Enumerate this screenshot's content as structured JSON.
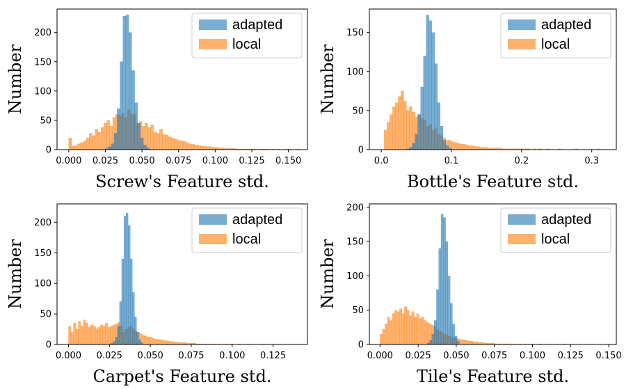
{
  "colors": {
    "adapted": "#1f77b4",
    "local": "#ff7f0e"
  },
  "chart_data": [
    {
      "type": "histogram",
      "xlabel": "Screw's Feature std.",
      "ylabel": "Number",
      "xlim": [
        -0.008,
        0.163
      ],
      "ylim": [
        0,
        240
      ],
      "xticks": [
        "0.000",
        "0.025",
        "0.050",
        "0.075",
        "0.100",
        "0.125",
        "0.150"
      ],
      "yticks": [
        "0",
        "50",
        "100",
        "150",
        "200"
      ],
      "legend": "top-right",
      "series": [
        {
          "name": "adapted",
          "color": "#1f77b4",
          "alpha": 0.6,
          "x0": 0.025,
          "bin_width": 0.002,
          "counts": [
            2,
            5,
            10,
            28,
            70,
            150,
            228,
            230,
            200,
            135,
            80,
            45,
            20,
            8,
            3
          ]
        },
        {
          "name": "local",
          "color": "#ff7f0e",
          "alpha": 0.6,
          "x0": 0.0,
          "bin_width": 0.002,
          "counts": [
            20,
            6,
            7,
            10,
            12,
            15,
            20,
            28,
            24,
            35,
            30,
            38,
            45,
            50,
            40,
            55,
            60,
            58,
            62,
            55,
            68,
            60,
            60,
            45,
            48,
            40,
            45,
            38,
            42,
            30,
            28,
            35,
            26,
            25,
            22,
            20,
            18,
            16,
            15,
            14,
            12,
            10,
            9,
            8,
            7,
            6,
            6,
            5,
            5,
            4,
            4,
            3,
            3,
            2,
            2,
            2,
            2,
            1,
            1,
            1,
            1,
            1,
            1,
            1,
            0,
            1,
            1,
            1,
            0,
            1,
            0,
            1,
            0,
            0,
            1,
            1,
            0,
            0,
            1,
            0
          ]
        }
      ]
    },
    {
      "type": "histogram",
      "xlabel": "Bottle's Feature std.",
      "ylabel": "Number",
      "xlim": [
        -0.017,
        0.335
      ],
      "ylim": [
        0,
        180
      ],
      "xticks": [
        "0.0",
        "0.1",
        "0.2",
        "0.3"
      ],
      "yticks": [
        "0",
        "50",
        "100",
        "150"
      ],
      "legend": "top-right",
      "series": [
        {
          "name": "adapted",
          "color": "#1f77b4",
          "alpha": 0.6,
          "x0": 0.036,
          "bin_width": 0.004,
          "counts": [
            1,
            3,
            8,
            20,
            45,
            80,
            120,
            172,
            165,
            150,
            110,
            60,
            30,
            12,
            5,
            2
          ]
        },
        {
          "name": "local",
          "color": "#ff7f0e",
          "alpha": 0.6,
          "x0": 0.004,
          "bin_width": 0.004,
          "counts": [
            25,
            35,
            45,
            55,
            60,
            68,
            75,
            62,
            50,
            55,
            48,
            42,
            45,
            40,
            38,
            30,
            32,
            25,
            28,
            20,
            18,
            15,
            12,
            12,
            10,
            9,
            8,
            7,
            7,
            6,
            5,
            5,
            4,
            4,
            3,
            3,
            3,
            2,
            2,
            2,
            2,
            2,
            1,
            1,
            1,
            1,
            1,
            1,
            1,
            1,
            1,
            1,
            0,
            1,
            0,
            1,
            0,
            0,
            1,
            0,
            0,
            0,
            1,
            0,
            0,
            0,
            0,
            0,
            1,
            0,
            0,
            0,
            0,
            0,
            0,
            0,
            1,
            0,
            0,
            0
          ]
        }
      ]
    },
    {
      "type": "histogram",
      "xlabel": "Carpet's Feature std.",
      "ylabel": "Number",
      "xlim": [
        -0.007,
        0.146
      ],
      "ylim": [
        0,
        230
      ],
      "xticks": [
        "0.000",
        "0.025",
        "0.050",
        "0.075",
        "0.100",
        "0.125"
      ],
      "yticks": [
        "0",
        "50",
        "100",
        "150",
        "200"
      ],
      "legend": "top-right",
      "series": [
        {
          "name": "adapted",
          "color": "#1f77b4",
          "alpha": 0.6,
          "x0": 0.026,
          "bin_width": 0.0013,
          "counts": [
            2,
            5,
            12,
            30,
            70,
            140,
            210,
            215,
            195,
            140,
            85,
            45,
            20,
            8,
            3
          ]
        },
        {
          "name": "local",
          "color": "#ff7f0e",
          "alpha": 0.6,
          "x0": 0.0,
          "bin_width": 0.0015,
          "counts": [
            30,
            20,
            35,
            25,
            38,
            30,
            40,
            35,
            28,
            32,
            30,
            26,
            28,
            32,
            30,
            35,
            28,
            30,
            32,
            34,
            36,
            30,
            20,
            25,
            28,
            30,
            26,
            22,
            20,
            18,
            15,
            14,
            12,
            12,
            10,
            9,
            8,
            8,
            7,
            6,
            6,
            5,
            5,
            4,
            4,
            3,
            3,
            3,
            2,
            2,
            2,
            2,
            1,
            1,
            1,
            1,
            1,
            0,
            1,
            1,
            0,
            1,
            0,
            0,
            1,
            0,
            1,
            0,
            0,
            1,
            0,
            0,
            0,
            1,
            0,
            0,
            0,
            0,
            0,
            1
          ]
        }
      ]
    },
    {
      "type": "histogram",
      "xlabel": "Tile's Feature std.",
      "ylabel": "Number",
      "xlim": [
        -0.007,
        0.155
      ],
      "ylim": [
        0,
        205
      ],
      "xticks": [
        "0.000",
        "0.025",
        "0.050",
        "0.075",
        "0.100",
        "0.125",
        "0.150"
      ],
      "yticks": [
        "0",
        "50",
        "100",
        "150",
        "200"
      ],
      "legend": "top-right",
      "series": [
        {
          "name": "adapted",
          "color": "#1f77b4",
          "alpha": 0.6,
          "x0": 0.031,
          "bin_width": 0.0015,
          "counts": [
            2,
            6,
            15,
            35,
            80,
            140,
            190,
            185,
            150,
            100,
            60,
            30,
            12,
            5
          ]
        },
        {
          "name": "local",
          "color": "#ff7f0e",
          "alpha": 0.6,
          "x0": 0.0,
          "bin_width": 0.0016,
          "counts": [
            15,
            22,
            30,
            40,
            35,
            45,
            50,
            48,
            52,
            45,
            55,
            50,
            42,
            48,
            40,
            45,
            38,
            40,
            35,
            32,
            30,
            28,
            26,
            22,
            20,
            18,
            15,
            14,
            12,
            10,
            10,
            9,
            8,
            7,
            7,
            6,
            5,
            5,
            4,
            4,
            3,
            3,
            3,
            2,
            2,
            2,
            2,
            1,
            1,
            1,
            1,
            1,
            1,
            1,
            0,
            1,
            0,
            1,
            0,
            1,
            0,
            0,
            1,
            0,
            0,
            1,
            0,
            0,
            0,
            1,
            0,
            0,
            0,
            0,
            0,
            1,
            0,
            0,
            0,
            0
          ]
        }
      ]
    }
  ]
}
